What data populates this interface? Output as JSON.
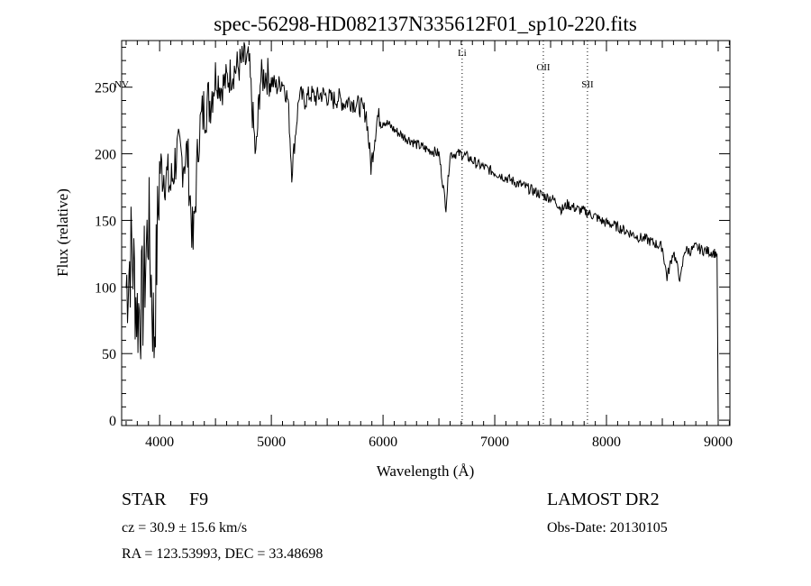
{
  "chart_data": {
    "type": "line",
    "title": "spec-56298-HD082137N335612F01_sp10-220.fits",
    "xlabel": "Wavelength (Å)",
    "ylabel": "Flux (relative)",
    "xlim": [
      3660,
      9105
    ],
    "ylim": [
      -4,
      285
    ],
    "xticks": [
      4000,
      5000,
      6000,
      7000,
      8000,
      9000
    ],
    "yticks": [
      0,
      50,
      100,
      150,
      200,
      250
    ],
    "grid": false,
    "lines": [
      {
        "label": "NV",
        "x": 3660
      },
      {
        "label": "Li",
        "x": 6708
      },
      {
        "label": "OII",
        "x": 7435
      },
      {
        "label": "SII",
        "x": 7830
      }
    ],
    "series": [
      {
        "name": "flux",
        "x": [
          3700,
          3750,
          3800,
          3850,
          3900,
          3950,
          4000,
          4050,
          4100,
          4150,
          4200,
          4250,
          4300,
          4350,
          4400,
          4450,
          4500,
          4550,
          4600,
          4650,
          4700,
          4750,
          4800,
          4861,
          4900,
          4950,
          5000,
          5050,
          5100,
          5150,
          5183,
          5250,
          5300,
          5350,
          5400,
          5450,
          5500,
          5550,
          5600,
          5650,
          5700,
          5750,
          5800,
          5850,
          5892,
          5950,
          6000,
          6050,
          6100,
          6150,
          6200,
          6250,
          6300,
          6350,
          6400,
          6450,
          6500,
          6563,
          6600,
          6650,
          6700,
          6750,
          6800,
          6850,
          6900,
          6950,
          7000,
          7050,
          7100,
          7150,
          7200,
          7250,
          7300,
          7350,
          7400,
          7450,
          7500,
          7550,
          7600,
          7650,
          7700,
          7750,
          7800,
          7850,
          7900,
          7950,
          8000,
          8050,
          8100,
          8150,
          8200,
          8250,
          8300,
          8350,
          8400,
          8450,
          8500,
          8542,
          8600,
          8662,
          8700,
          8750,
          8800,
          8850,
          8900,
          8950,
          8990,
          9000
        ],
        "y": [
          100,
          130,
          80,
          90,
          150,
          60,
          190,
          185,
          175,
          200,
          195,
          200,
          130,
          215,
          235,
          240,
          260,
          250,
          255,
          262,
          265,
          270,
          268,
          196,
          255,
          260,
          255,
          250,
          255,
          240,
          186,
          245,
          240,
          245,
          242,
          245,
          243,
          240,
          242,
          238,
          240,
          238,
          235,
          230,
          190,
          228,
          225,
          222,
          218,
          215,
          212,
          210,
          207,
          205,
          203,
          202,
          200,
          160,
          200,
          200,
          200,
          198,
          195,
          192,
          190,
          188,
          186,
          184,
          182,
          180,
          178,
          176,
          174,
          172,
          170,
          168,
          167,
          164,
          158,
          162,
          160,
          158,
          157,
          155,
          153,
          150,
          148,
          147,
          145,
          143,
          141,
          139,
          137,
          136,
          134,
          132,
          130,
          107,
          127,
          105,
          128,
          127,
          130,
          128,
          127,
          126,
          125,
          0
        ]
      }
    ]
  },
  "footer": {
    "object_type": "STAR",
    "subclass": "F9",
    "survey": "LAMOST DR2",
    "cz": "cz = 30.9 ± 15.6 km/s",
    "obs_date": "Obs-Date: 20130105",
    "coords": "RA = 123.53993, DEC =  33.48698"
  }
}
